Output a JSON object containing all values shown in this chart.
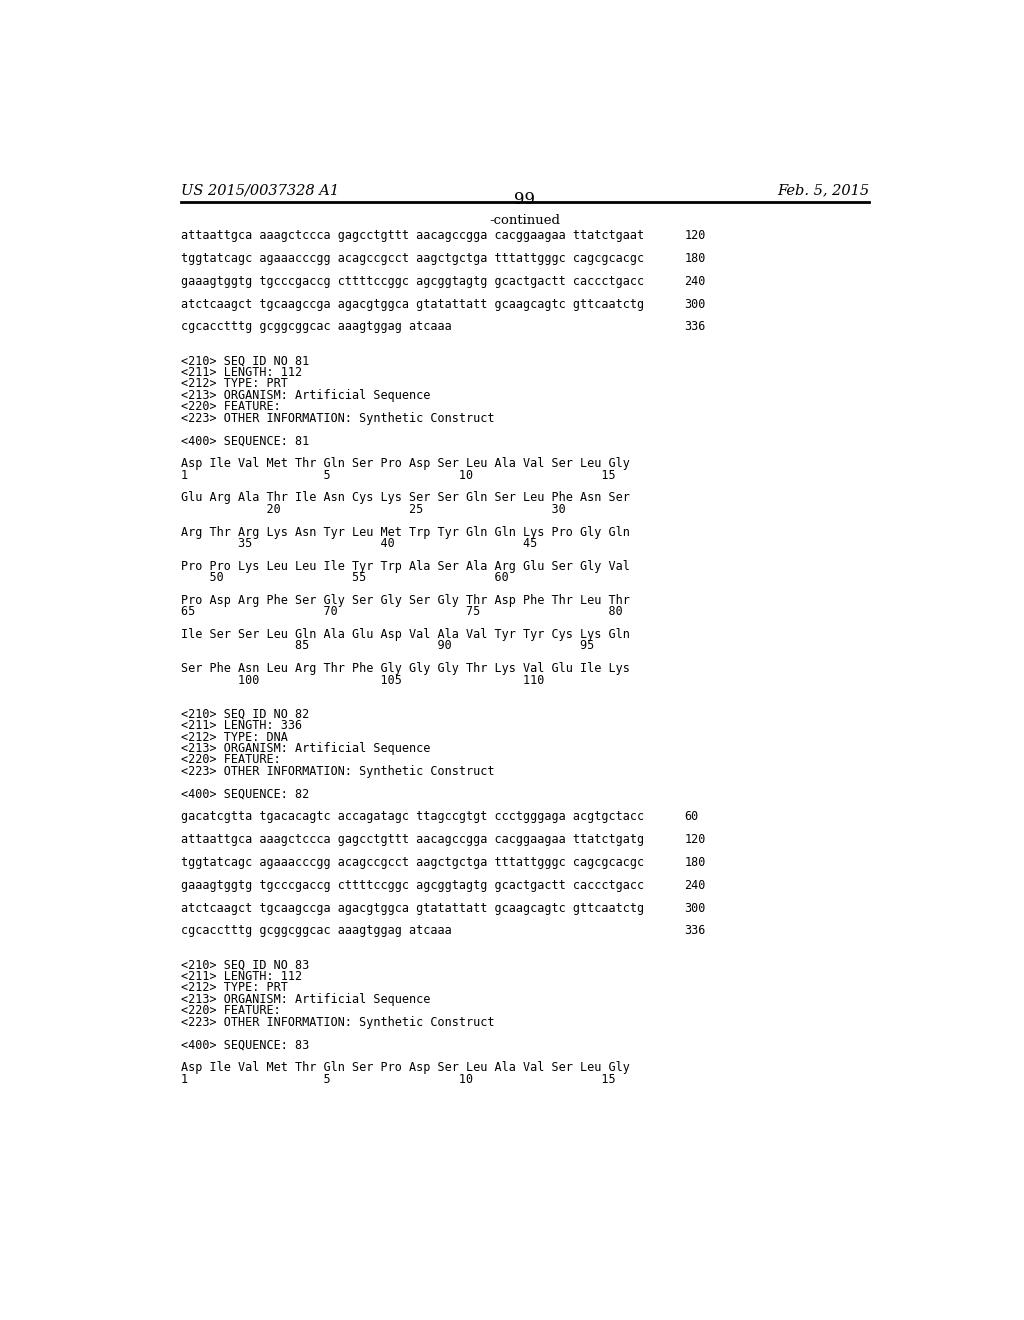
{
  "header_left": "US 2015/0037328 A1",
  "header_right": "Feb. 5, 2015",
  "page_number": "99",
  "continued_label": "-continued",
  "background_color": "#ffffff",
  "text_color": "#000000",
  "lines": [
    {
      "text": "attaattgca aaagctccca gagcctgttt aacagccgga cacggaagaa ttatctgaat",
      "num": "120",
      "style": "mono"
    },
    {
      "text": "",
      "num": "",
      "style": "blank"
    },
    {
      "text": "tggtatcagc agaaacccgg acagccgcct aagctgctga tttattgggc cagcgcacgc",
      "num": "180",
      "style": "mono"
    },
    {
      "text": "",
      "num": "",
      "style": "blank"
    },
    {
      "text": "gaaagtggtg tgcccgaccg cttttccggc agcggtagtg gcactgactt caccctgacc",
      "num": "240",
      "style": "mono"
    },
    {
      "text": "",
      "num": "",
      "style": "blank"
    },
    {
      "text": "atctcaagct tgcaagccga agacgtggca gtatattatt gcaagcagtc gttcaatctg",
      "num": "300",
      "style": "mono"
    },
    {
      "text": "",
      "num": "",
      "style": "blank"
    },
    {
      "text": "cgcacctttg gcggcggcac aaagtggag atcaaa",
      "num": "336",
      "style": "mono"
    },
    {
      "text": "",
      "num": "",
      "style": "blank"
    },
    {
      "text": "",
      "num": "",
      "style": "blank"
    },
    {
      "text": "<210> SEQ ID NO 81",
      "num": "",
      "style": "mono"
    },
    {
      "text": "<211> LENGTH: 112",
      "num": "",
      "style": "mono"
    },
    {
      "text": "<212> TYPE: PRT",
      "num": "",
      "style": "mono"
    },
    {
      "text": "<213> ORGANISM: Artificial Sequence",
      "num": "",
      "style": "mono"
    },
    {
      "text": "<220> FEATURE:",
      "num": "",
      "style": "mono"
    },
    {
      "text": "<223> OTHER INFORMATION: Synthetic Construct",
      "num": "",
      "style": "mono"
    },
    {
      "text": "",
      "num": "",
      "style": "blank"
    },
    {
      "text": "<400> SEQUENCE: 81",
      "num": "",
      "style": "mono"
    },
    {
      "text": "",
      "num": "",
      "style": "blank"
    },
    {
      "text": "Asp Ile Val Met Thr Gln Ser Pro Asp Ser Leu Ala Val Ser Leu Gly",
      "num": "",
      "style": "mono"
    },
    {
      "text": "1                   5                  10                  15",
      "num": "",
      "style": "mono"
    },
    {
      "text": "",
      "num": "",
      "style": "blank"
    },
    {
      "text": "Glu Arg Ala Thr Ile Asn Cys Lys Ser Ser Gln Ser Leu Phe Asn Ser",
      "num": "",
      "style": "mono"
    },
    {
      "text": "            20                  25                  30",
      "num": "",
      "style": "mono"
    },
    {
      "text": "",
      "num": "",
      "style": "blank"
    },
    {
      "text": "Arg Thr Arg Lys Asn Tyr Leu Met Trp Tyr Gln Gln Lys Pro Gly Gln",
      "num": "",
      "style": "mono"
    },
    {
      "text": "        35                  40                  45",
      "num": "",
      "style": "mono"
    },
    {
      "text": "",
      "num": "",
      "style": "blank"
    },
    {
      "text": "Pro Pro Lys Leu Leu Ile Tyr Trp Ala Ser Ala Arg Glu Ser Gly Val",
      "num": "",
      "style": "mono"
    },
    {
      "text": "    50                  55                  60",
      "num": "",
      "style": "mono"
    },
    {
      "text": "",
      "num": "",
      "style": "blank"
    },
    {
      "text": "Pro Asp Arg Phe Ser Gly Ser Gly Ser Gly Thr Asp Phe Thr Leu Thr",
      "num": "",
      "style": "mono"
    },
    {
      "text": "65                  70                  75                  80",
      "num": "",
      "style": "mono"
    },
    {
      "text": "",
      "num": "",
      "style": "blank"
    },
    {
      "text": "Ile Ser Ser Leu Gln Ala Glu Asp Val Ala Val Tyr Tyr Cys Lys Gln",
      "num": "",
      "style": "mono"
    },
    {
      "text": "                85                  90                  95",
      "num": "",
      "style": "mono"
    },
    {
      "text": "",
      "num": "",
      "style": "blank"
    },
    {
      "text": "Ser Phe Asn Leu Arg Thr Phe Gly Gly Gly Thr Lys Val Glu Ile Lys",
      "num": "",
      "style": "mono"
    },
    {
      "text": "        100                 105                 110",
      "num": "",
      "style": "mono"
    },
    {
      "text": "",
      "num": "",
      "style": "blank"
    },
    {
      "text": "",
      "num": "",
      "style": "blank"
    },
    {
      "text": "<210> SEQ ID NO 82",
      "num": "",
      "style": "mono"
    },
    {
      "text": "<211> LENGTH: 336",
      "num": "",
      "style": "mono"
    },
    {
      "text": "<212> TYPE: DNA",
      "num": "",
      "style": "mono"
    },
    {
      "text": "<213> ORGANISM: Artificial Sequence",
      "num": "",
      "style": "mono"
    },
    {
      "text": "<220> FEATURE:",
      "num": "",
      "style": "mono"
    },
    {
      "text": "<223> OTHER INFORMATION: Synthetic Construct",
      "num": "",
      "style": "mono"
    },
    {
      "text": "",
      "num": "",
      "style": "blank"
    },
    {
      "text": "<400> SEQUENCE: 82",
      "num": "",
      "style": "mono"
    },
    {
      "text": "",
      "num": "",
      "style": "blank"
    },
    {
      "text": "gacatcgtta tgacacagtc accagatagc ttagccgtgt ccctgggaga acgtgctacc",
      "num": "60",
      "style": "mono"
    },
    {
      "text": "",
      "num": "",
      "style": "blank"
    },
    {
      "text": "attaattgca aaagctccca gagcctgttt aacagccgga cacggaagaa ttatctgatg",
      "num": "120",
      "style": "mono"
    },
    {
      "text": "",
      "num": "",
      "style": "blank"
    },
    {
      "text": "tggtatcagc agaaacccgg acagccgcct aagctgctga tttattgggc cagcgcacgc",
      "num": "180",
      "style": "mono"
    },
    {
      "text": "",
      "num": "",
      "style": "blank"
    },
    {
      "text": "gaaagtggtg tgcccgaccg cttttccggc agcggtagtg gcactgactt caccctgacc",
      "num": "240",
      "style": "mono"
    },
    {
      "text": "",
      "num": "",
      "style": "blank"
    },
    {
      "text": "atctcaagct tgcaagccga agacgtggca gtatattatt gcaagcagtc gttcaatctg",
      "num": "300",
      "style": "mono"
    },
    {
      "text": "",
      "num": "",
      "style": "blank"
    },
    {
      "text": "cgcacctttg gcggcggcac aaagtggag atcaaa",
      "num": "336",
      "style": "mono"
    },
    {
      "text": "",
      "num": "",
      "style": "blank"
    },
    {
      "text": "",
      "num": "",
      "style": "blank"
    },
    {
      "text": "<210> SEQ ID NO 83",
      "num": "",
      "style": "mono"
    },
    {
      "text": "<211> LENGTH: 112",
      "num": "",
      "style": "mono"
    },
    {
      "text": "<212> TYPE: PRT",
      "num": "",
      "style": "mono"
    },
    {
      "text": "<213> ORGANISM: Artificial Sequence",
      "num": "",
      "style": "mono"
    },
    {
      "text": "<220> FEATURE:",
      "num": "",
      "style": "mono"
    },
    {
      "text": "<223> OTHER INFORMATION: Synthetic Construct",
      "num": "",
      "style": "mono"
    },
    {
      "text": "",
      "num": "",
      "style": "blank"
    },
    {
      "text": "<400> SEQUENCE: 83",
      "num": "",
      "style": "mono"
    },
    {
      "text": "",
      "num": "",
      "style": "blank"
    },
    {
      "text": "Asp Ile Val Met Thr Gln Ser Pro Asp Ser Leu Ala Val Ser Leu Gly",
      "num": "",
      "style": "mono"
    },
    {
      "text": "1                   5                  10                  15",
      "num": "",
      "style": "mono"
    }
  ]
}
